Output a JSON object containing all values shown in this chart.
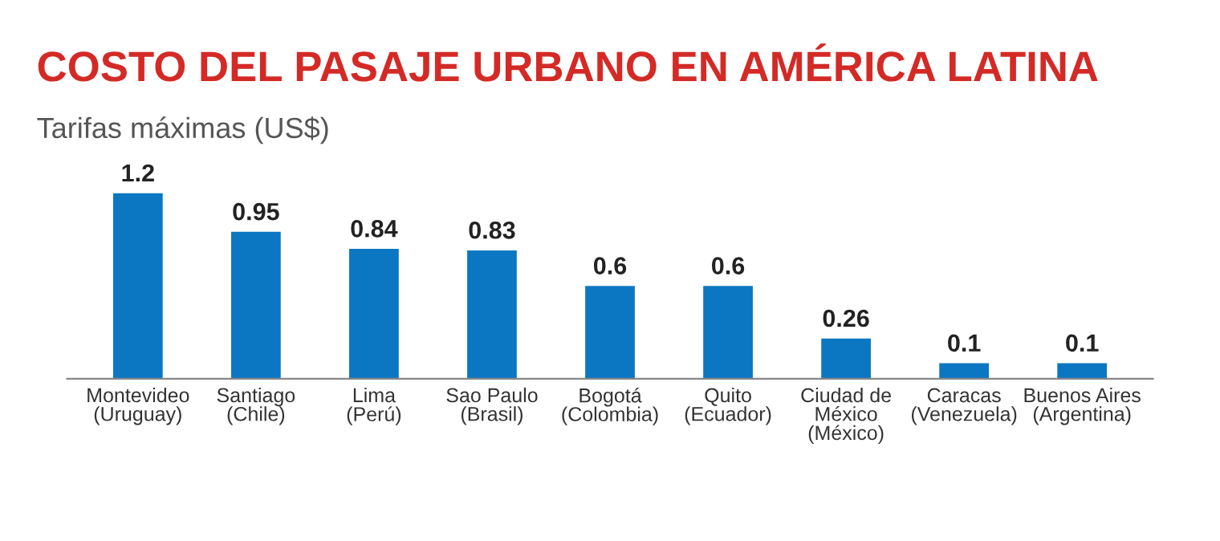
{
  "chart_data": {
    "type": "bar",
    "title": "COSTO DEL PASAJE URBANO EN AMÉRICA LATINA",
    "subtitle": "Tarifas máximas (US$)",
    "categories": [
      "Montevideo\n(Uruguay)",
      "Santiago\n(Chile)",
      "Lima\n(Perú)",
      "Sao Paulo\n(Brasil)",
      "Bogotá\n(Colombia)",
      "Quito\n(Ecuador)",
      "Ciudad de\nMéxico\n(México)",
      "Caracas\n(Venezuela)",
      "Buenos Aires\n(Argentina)"
    ],
    "values": [
      1.2,
      0.95,
      0.84,
      0.83,
      0.6,
      0.6,
      0.26,
      0.1,
      0.1
    ],
    "color": "#0b77c2",
    "data_labels": true,
    "grid": false
  }
}
